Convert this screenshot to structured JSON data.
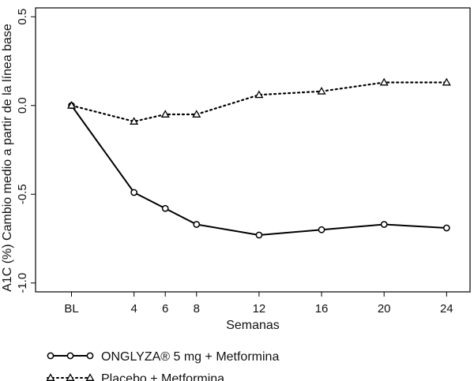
{
  "chart_data": {
    "type": "line",
    "categories": [
      "BL",
      "4",
      "6",
      "8",
      "12",
      "16",
      "20",
      "24"
    ],
    "x": [
      0,
      4,
      6,
      8,
      12,
      16,
      20,
      24
    ],
    "series": [
      {
        "name": "ONGLYZA® 5 mg + Metformina",
        "values": [
          0.0,
          -0.49,
          -0.58,
          -0.67,
          -0.73,
          -0.7,
          -0.67,
          -0.69
        ],
        "line_style": "solid",
        "marker": "circle",
        "color": "#000000"
      },
      {
        "name": "Placebo + Metformina",
        "values": [
          0.0,
          -0.09,
          -0.05,
          -0.05,
          0.06,
          0.08,
          0.13,
          0.13
        ],
        "line_style": "dotted",
        "marker": "triangle",
        "color": "#000000"
      }
    ],
    "ylim": [
      -1.05,
      0.55
    ],
    "y_ticks": [
      "0.5",
      "0.0",
      "-0.5",
      "-1.0"
    ],
    "y_tick_values": [
      0.5,
      0.0,
      -0.5,
      -1.0
    ],
    "xlim": [
      -2.3,
      25.5
    ],
    "xlabel": "Semanas",
    "ylabel": "A1C (%) Cambio medio a partir de la línea base",
    "title": "",
    "grid": false,
    "legend_position": "bottom-left"
  }
}
